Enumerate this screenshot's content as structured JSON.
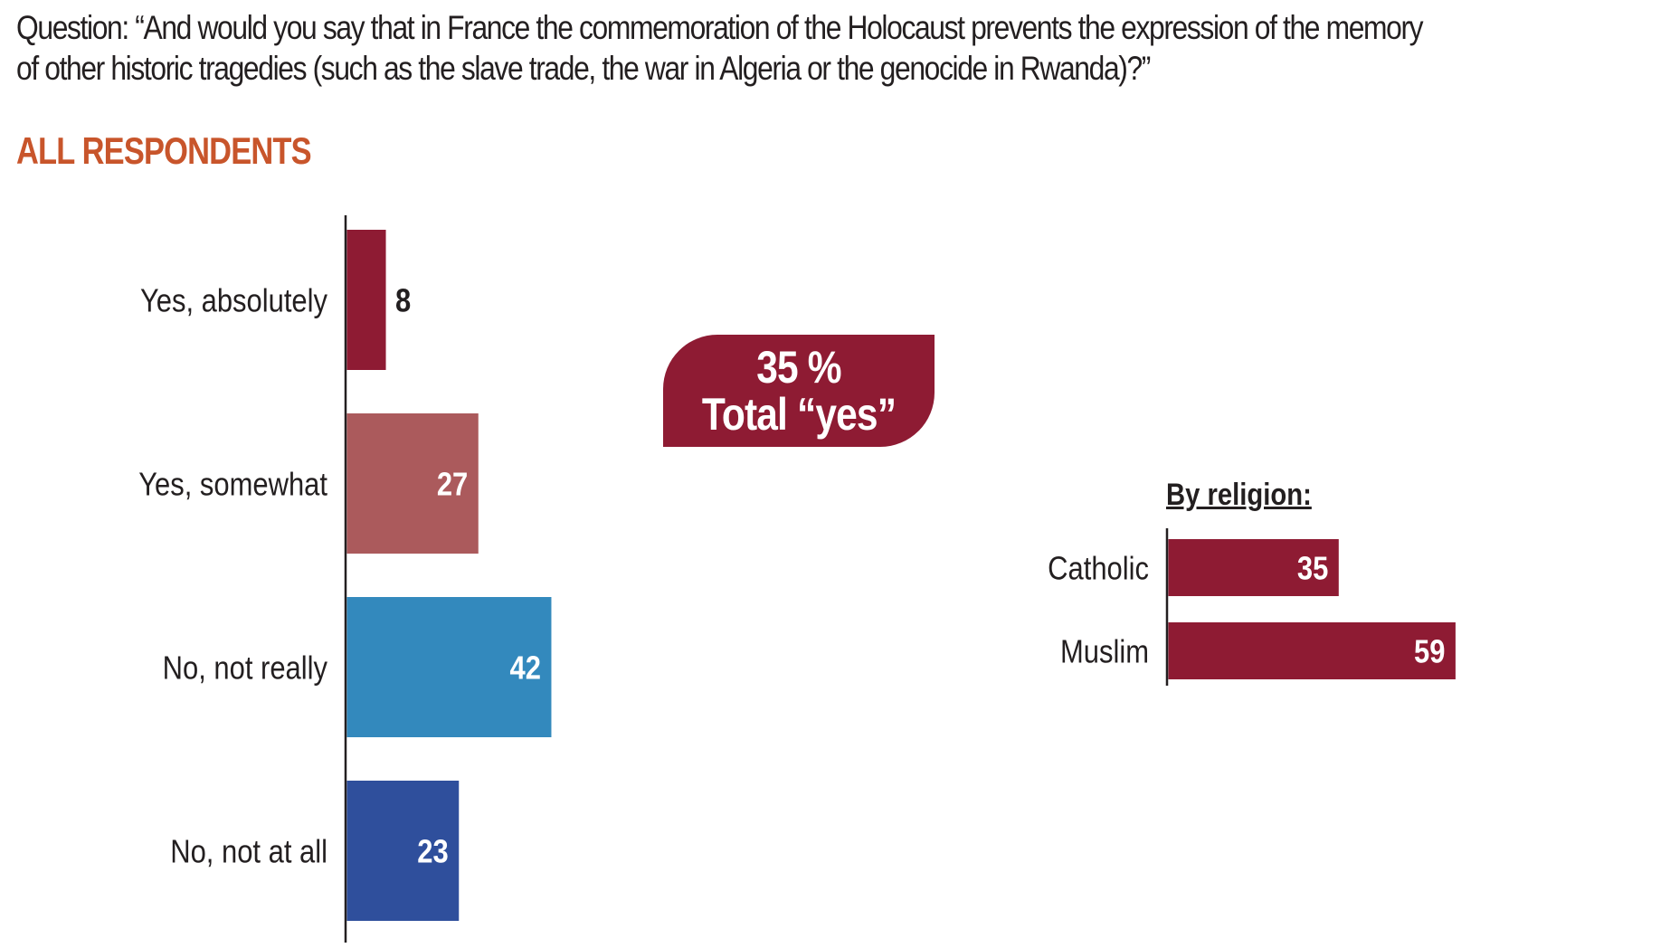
{
  "question": {
    "line1": "Question: “And would you say that in France the commemoration of the Holocaust prevents the expression of the memory",
    "line2": "of other historic tragedies (such as the slave trade, the war in Algeria or the genocide in Rwanda)?”"
  },
  "section_title": "ALL RESPONDENTS",
  "callout": {
    "percent": "35 %",
    "label": "Total “yes”",
    "color": "#8e1b33"
  },
  "colors": {
    "title_orange": "#c8552b",
    "text_dark": "#231f20",
    "yes_absolutely": "#8e1b33",
    "yes_somewhat": "#ab5a5c",
    "no_not_really": "#3389bd",
    "no_not_at_all": "#2f4f9c",
    "religion_bar": "#8e1b33"
  },
  "chart_data": [
    {
      "type": "bar",
      "orientation": "horizontal",
      "title": "ALL RESPONDENTS",
      "categories": [
        "Yes, absolutely",
        "Yes, somewhat",
        "No, not really",
        "No, not at all"
      ],
      "values": [
        8,
        27,
        42,
        23
      ],
      "value_labels": [
        "8",
        "27",
        "42",
        "23"
      ],
      "colors": [
        "#8e1b33",
        "#ab5a5c",
        "#3389bd",
        "#2f4f9c"
      ],
      "label_colors": [
        "#231f20",
        "#ffffff",
        "#ffffff",
        "#ffffff"
      ],
      "xlabel": "",
      "ylabel": "",
      "xlim": [
        0,
        100
      ],
      "grid": false,
      "legend": "none"
    },
    {
      "type": "bar",
      "orientation": "horizontal",
      "title": "By religion:",
      "categories": [
        "Catholic",
        "Muslim"
      ],
      "values": [
        35,
        59
      ],
      "value_labels": [
        "35",
        "59"
      ],
      "colors": [
        "#8e1b33",
        "#8e1b33"
      ],
      "label_colors": [
        "#ffffff",
        "#ffffff"
      ],
      "xlabel": "",
      "ylabel": "",
      "xlim": [
        0,
        100
      ],
      "grid": false,
      "legend": "none"
    }
  ]
}
